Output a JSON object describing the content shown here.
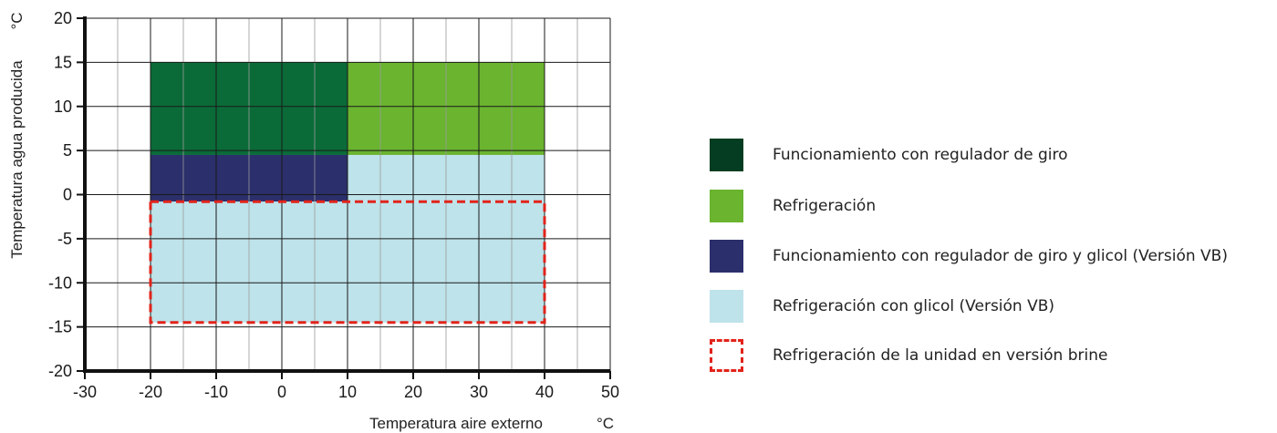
{
  "chart_data": {
    "type": "area",
    "xlabel": "Temperatura aire externo",
    "ylabel": "Temperatura agua producida",
    "x_unit": "°C",
    "y_unit": "°C",
    "xlim": [
      -30,
      50
    ],
    "ylim": [
      -20,
      20
    ],
    "x_ticks": [
      -30,
      -20,
      -10,
      0,
      10,
      20,
      30,
      40,
      50
    ],
    "x_tick_labels": [
      "-30",
      "-20",
      "-10",
      "0",
      "10",
      "20",
      "30",
      "40",
      "50"
    ],
    "y_ticks": [
      20,
      15,
      10,
      5,
      0,
      -5,
      -10,
      -15,
      -20
    ],
    "y_tick_labels": [
      "20",
      "15",
      "10",
      "5",
      "0",
      "-5",
      "-10",
      "-15",
      "-20"
    ],
    "grid": true,
    "regions": [
      {
        "label": "Funcionamiento con regulador de giro",
        "color": "#0a6b38",
        "x": [
          -20,
          10
        ],
        "y": [
          4.5,
          15
        ]
      },
      {
        "label": "Refrigeración",
        "color": "#6ab42f",
        "x": [
          10,
          40
        ],
        "y": [
          4.5,
          15
        ]
      },
      {
        "label": "Funcionamiento con regulador de giro y glicol (Versión VB)",
        "color": "#2b2f6b",
        "x": [
          -20,
          10
        ],
        "y": [
          -0.8,
          4.5
        ]
      },
      {
        "label": "Refrigeración con glicol (Versión VB)",
        "color": "#bee3ea",
        "x": [
          10,
          40
        ],
        "y": [
          -0.8,
          4.5
        ]
      },
      {
        "label": "Refrigeración con glicol (Versión VB)",
        "color": "#bee3ea",
        "x": [
          -20,
          40
        ],
        "y": [
          -14.5,
          -0.8
        ]
      }
    ],
    "dashed_region": {
      "label": "Refrigeración de la unidad en versión brine",
      "color": "#e2231a",
      "x": [
        -20,
        40
      ],
      "y": [
        -14.5,
        -0.8
      ]
    }
  },
  "legend": {
    "items": [
      {
        "label": "Funcionamiento con regulador de giro",
        "color": "#043d21",
        "style": "fill"
      },
      {
        "label": "Refrigeración",
        "color": "#6ab42f",
        "style": "fill"
      },
      {
        "label": "Funcionamiento con regulador de giro y glicol (Versión VB)",
        "color": "#2b2f6b",
        "style": "fill"
      },
      {
        "label": "Refrigeración con glicol (Versión VB)",
        "color": "#bee3ea",
        "style": "fill"
      },
      {
        "label": "Refrigeración de la unidad en versión brine",
        "color": "#e2231a",
        "style": "dashed"
      }
    ]
  }
}
